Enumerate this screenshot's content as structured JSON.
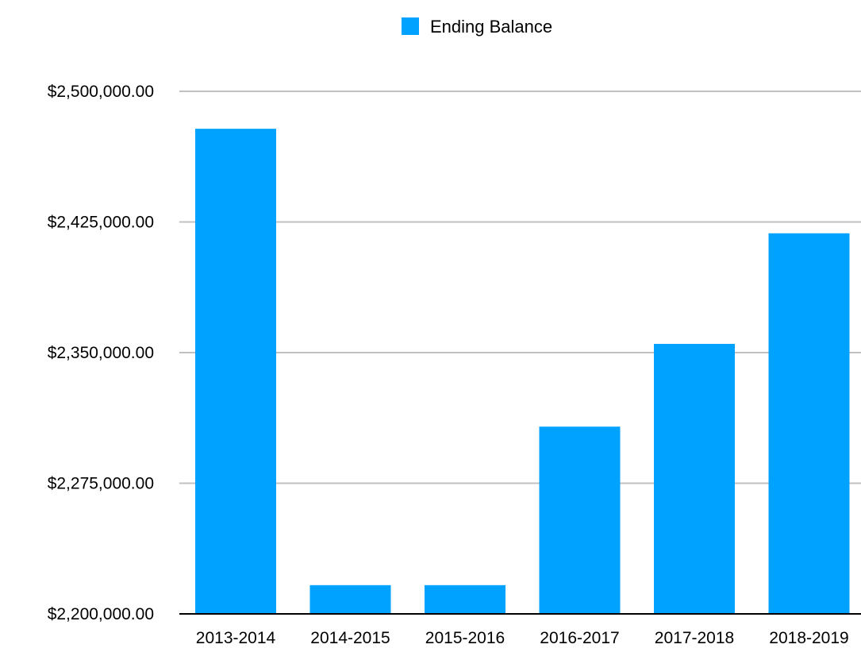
{
  "chart_data": {
    "type": "bar",
    "title": "",
    "xlabel": "",
    "ylabel": "",
    "categories": [
      "2013-2014",
      "2014-2015",
      "2015-2016",
      "2016-2017",
      "2017-2018",
      "2018-2019"
    ],
    "series": [
      {
        "name": "Ending Balance",
        "values": [
          2478500,
          2216500,
          2216500,
          2307500,
          2355000,
          2418500
        ]
      }
    ],
    "ylim": [
      2200000,
      2500000
    ],
    "yticks": [
      2200000,
      2275000,
      2350000,
      2425000,
      2500000
    ],
    "ytick_labels": [
      "$2,200,000.00",
      "$2,275,000.00",
      "$2,350,000.00",
      "$2,425,000.00",
      "$2,500,000.00"
    ],
    "grid": true,
    "legend": {
      "position": "top-center",
      "entries": [
        "Ending Balance"
      ]
    },
    "colors": {
      "bar": "#00A2FF",
      "grid": "#C0C0C0",
      "axis": "#000000",
      "background": "#FFFFFF"
    }
  }
}
